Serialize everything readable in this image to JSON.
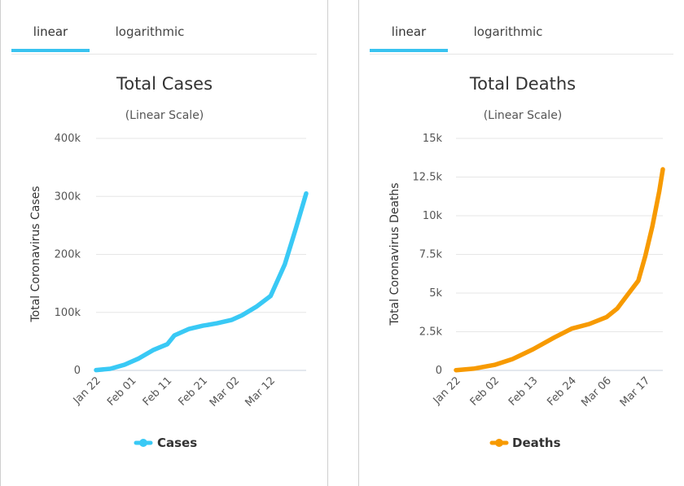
{
  "tabs_left": [
    {
      "label": "linear",
      "active": true
    },
    {
      "label": "logarithmic",
      "active": false
    }
  ],
  "tabs_right": [
    {
      "label": "linear",
      "active": true
    },
    {
      "label": "logarithmic",
      "active": false
    }
  ],
  "colors": {
    "cases": "#39c9f5",
    "deaths": "#f79a00",
    "grid": "#e6e6e6",
    "tab_accent": "#39c3f0"
  },
  "chart_data": [
    {
      "type": "line",
      "title": "Total Cases",
      "subtitle": "(Linear Scale)",
      "ylabel": "Total Coronavirus Cases",
      "xlabel": "",
      "ylim": [
        0,
        400000
      ],
      "yticks": [
        0,
        100000,
        200000,
        300000,
        400000
      ],
      "ytick_labels": [
        "0",
        "100k",
        "200k",
        "300k",
        "400k"
      ],
      "xticks": [
        "Jan 22",
        "Feb 01",
        "Feb 11",
        "Feb 21",
        "Mar 02",
        "Mar 12"
      ],
      "legend": {
        "position": "bottom-center"
      },
      "grid": true,
      "series": [
        {
          "name": "Cases",
          "color": "#39c9f5",
          "x": [
            "Jan 22",
            "Jan 26",
            "Jan 30",
            "Feb 03",
            "Feb 07",
            "Feb 11",
            "Feb 13",
            "Feb 17",
            "Feb 21",
            "Feb 25",
            "Feb 29",
            "Mar 04",
            "Mar 08",
            "Mar 12",
            "Mar 16",
            "Mar 19",
            "Mar 22"
          ],
          "y": [
            600,
            2800,
            9800,
            20600,
            34900,
            45200,
            60400,
            71300,
            77000,
            81200,
            86900,
            95100,
            109700,
            128300,
            183000,
            242600,
            305000
          ]
        }
      ]
    },
    {
      "type": "line",
      "title": "Total Deaths",
      "subtitle": "(Linear Scale)",
      "ylabel": "Total Coronavirus Deaths",
      "xlabel": "",
      "ylim": [
        0,
        15000
      ],
      "yticks": [
        0,
        2500,
        5000,
        7500,
        10000,
        12500,
        15000
      ],
      "ytick_labels": [
        "0",
        "2.5k",
        "5k",
        "7.5k",
        "10k",
        "12.5k",
        "15k"
      ],
      "xticks": [
        "Jan 22",
        "Feb 02",
        "Feb 13",
        "Feb 24",
        "Mar 06",
        "Mar 17"
      ],
      "legend": {
        "position": "bottom-center"
      },
      "grid": true,
      "series": [
        {
          "name": "Deaths",
          "color": "#f79a00",
          "x": [
            "Jan 22",
            "Jan 27",
            "Feb 02",
            "Feb 07",
            "Feb 13",
            "Feb 19",
            "Feb 24",
            "Mar 01",
            "Mar 06",
            "Mar 09",
            "Mar 12",
            "Mar 15",
            "Mar 17",
            "Mar 19",
            "Mar 21",
            "Mar 22"
          ],
          "y": [
            17,
            110,
            360,
            720,
            1370,
            2120,
            2700,
            3000,
            3450,
            4000,
            4900,
            5800,
            7400,
            9300,
            11600,
            13000
          ]
        }
      ]
    }
  ]
}
